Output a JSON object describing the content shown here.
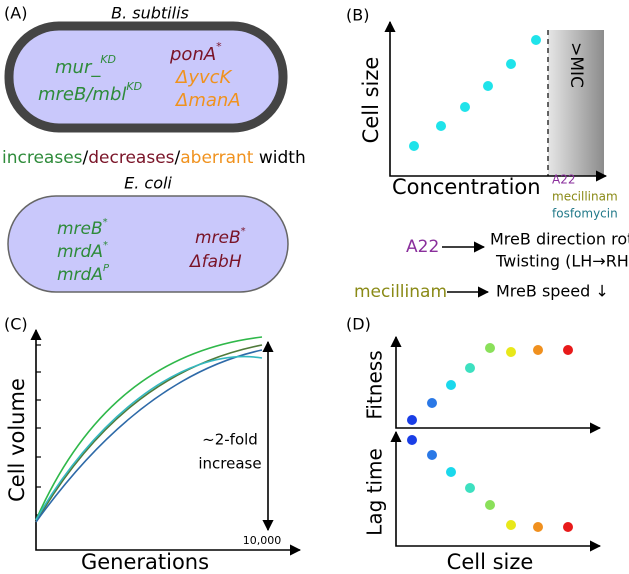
{
  "panel_a": {
    "label": "(A)",
    "bsub_title": "B. subtilis",
    "bsub_left": [
      {
        "text": "mur_",
        "sup": "KD"
      },
      {
        "text": "mreB/mbl",
        "sup": "KD"
      }
    ],
    "bsub_right": [
      {
        "text": "ponA",
        "sup": "*"
      },
      {
        "text": "ΔyvcK"
      },
      {
        "text": "ΔmanA"
      }
    ],
    "legend": [
      "increases",
      "/",
      "decreases",
      "/",
      "aberrant",
      " width"
    ],
    "ecoli_title": "E. coli",
    "ecoli_left": [
      {
        "text": "mreB",
        "sup": "*"
      },
      {
        "text": "mrdA",
        "sup": "*"
      },
      {
        "text": "mrdA",
        "sup": "P"
      }
    ],
    "ecoli_right": [
      {
        "text": "mreB",
        "sup": "*"
      },
      {
        "text": "ΔfabH"
      }
    ]
  },
  "panel_b": {
    "label": "(B)",
    "y_label": "Cell size",
    "x_label": "Concentration",
    "mic": ">MIC",
    "drugs": [
      "A22",
      "mecillinam",
      "fosfomycin"
    ],
    "effects": [
      {
        "drug": "A22",
        "lines": [
          "MreB direction rotates",
          "Twisting (LH→RH)"
        ]
      },
      {
        "drug": "mecillinam",
        "lines": [
          "MreB speed ↓"
        ]
      }
    ]
  },
  "panel_c": {
    "label": "(C)",
    "y_label": "Cell volume",
    "x_label": "Generations",
    "x_end": "10,000",
    "annotation": [
      "~2-fold",
      "increase"
    ]
  },
  "panel_d": {
    "label": "(D)",
    "y_label_top": "Fitness",
    "y_label_bottom": "Lag time",
    "x_label": "Cell size"
  }
}
